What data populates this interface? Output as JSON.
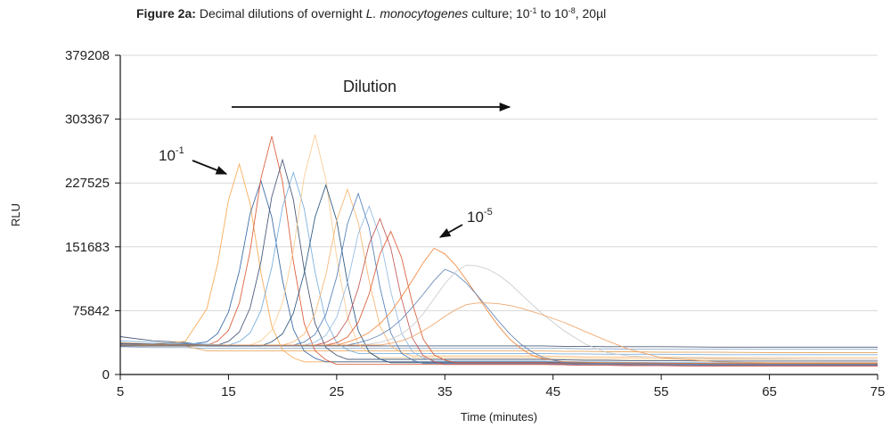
{
  "chart_data": {
    "type": "line",
    "title": [
      "Figure 2a:",
      "Decimal dilutions of overnight",
      "L. monocytogenes",
      "culture; 10",
      "-1",
      "to 10",
      "-8",
      ", 20µl"
    ],
    "xlabel": "Time (minutes)",
    "ylabel": "RLU",
    "annotations": [
      {
        "text": "Dilution"
      },
      {
        "text": "10",
        "sup": "-1"
      },
      {
        "text": "10",
        "sup": "-5"
      }
    ],
    "xlim": [
      5,
      75
    ],
    "xticks": [
      5,
      15,
      25,
      35,
      45,
      55,
      65,
      75
    ],
    "ylim": [
      0,
      379208
    ],
    "yticks": [
      0,
      75842,
      151683,
      227525,
      303367,
      379208
    ],
    "grid": true,
    "x": [
      5,
      8,
      11,
      13,
      14,
      15,
      16,
      17,
      18,
      19,
      20,
      21,
      22,
      23,
      24,
      25,
      26,
      27,
      28,
      29,
      30,
      31,
      32,
      33,
      34,
      35,
      36,
      37,
      38,
      39,
      40,
      41,
      42,
      43,
      44,
      46,
      48,
      50,
      52,
      55,
      60,
      65,
      70,
      75
    ],
    "series": [
      {
        "color": "#7f9fc0",
        "values": [
          33000,
          32000,
          32000,
          31000,
          31000,
          31000,
          31000,
          31000,
          31000,
          31000,
          31000,
          31000,
          31000,
          31000,
          31000,
          31000,
          31000,
          31000,
          31000,
          31000,
          31000,
          31000,
          31000,
          31000,
          31000,
          31000,
          31000,
          31000,
          31000,
          31000,
          31000,
          31000,
          31000,
          31000,
          31000,
          31000,
          30500,
          30500,
          30000,
          30000,
          30000,
          30000,
          30000,
          30000
        ]
      },
      {
        "color": "#e6a35a",
        "values": [
          38000,
          36000,
          34000,
          28000,
          28000,
          28000,
          28000,
          28000,
          28000,
          28000,
          28000,
          28000,
          28000,
          28000,
          28000,
          28000,
          28000,
          28000,
          28000,
          28000,
          28000,
          28000,
          28000,
          28000,
          28000,
          28000,
          28000,
          28000,
          28000,
          28000,
          28000,
          28000,
          28000,
          28000,
          28000,
          27500,
          27500,
          27000,
          27000,
          26500,
          26500,
          26000,
          26000,
          26000
        ]
      },
      {
        "color": "#3a4a6b",
        "values": [
          45000,
          40000,
          38000,
          34000,
          34000,
          34000,
          34000,
          34000,
          34000,
          34000,
          34000,
          34000,
          34000,
          34000,
          34000,
          34000,
          34000,
          34000,
          34000,
          34000,
          34000,
          34000,
          34000,
          34000,
          34000,
          34000,
          34000,
          34000,
          34000,
          34000,
          34000,
          34000,
          34000,
          34000,
          34000,
          33500,
          33500,
          33000,
          33000,
          33000,
          32500,
          32500,
          32500,
          32500
        ]
      },
      {
        "color": "#f5a54a",
        "values": [
          35000,
          36000,
          39300,
          78000,
          131750,
          207000,
          250000,
          203000,
          120750,
          57300,
          29100,
          19700,
          15000,
          15000,
          15000,
          15000,
          15000,
          15000,
          15000,
          15000,
          15000,
          15000,
          15000,
          15000,
          15000,
          15000,
          15000,
          15000,
          15000,
          15000,
          15000,
          15000,
          15000,
          15000,
          15000,
          14500,
          14000,
          14000,
          13500,
          13500,
          13000,
          13000,
          13000,
          13000
        ]
      },
      {
        "color": "#2c5f9e",
        "values": [
          36000,
          35000,
          35000,
          38900,
          48650,
          74000,
          122750,
          191000,
          230000,
          187000,
          111750,
          53700,
          27900,
          19300,
          15000,
          15000,
          15000,
          15000,
          15000,
          15000,
          15000,
          15000,
          15000,
          15000,
          15000,
          15000,
          15000,
          15000,
          15000,
          15000,
          15000,
          15000,
          15000,
          15000,
          15000,
          14500,
          14000,
          14000,
          14000,
          13500,
          13500,
          13500,
          13500,
          13500
        ]
      },
      {
        "color": "#d9532b",
        "values": [
          34000,
          34000,
          34000,
          34500,
          39960,
          52360,
          84600,
          146600,
          233400,
          283000,
          228800,
          133950,
          60780,
          28260,
          17420,
          12000,
          12000,
          12000,
          12000,
          12000,
          12000,
          12000,
          12000,
          12000,
          12000,
          12000,
          12000,
          12000,
          12000,
          12000,
          12000,
          12000,
          12000,
          12000,
          12000,
          11500,
          11000,
          11000,
          10500,
          10500,
          10000,
          10000,
          10000,
          10000
        ]
      },
      {
        "color": "#3a4a6b",
        "values": [
          37000,
          36000,
          36000,
          35500,
          35000,
          39400,
          50400,
          79000,
          134000,
          211000,
          255000,
          207600,
          124650,
          60660,
          32220,
          22740,
          18000,
          18000,
          18000,
          18000,
          18000,
          18000,
          18000,
          18000,
          18000,
          18000,
          18000,
          18000,
          18000,
          18000,
          18000,
          18000,
          18000,
          18000,
          18000,
          17500,
          17000,
          17000,
          16500,
          16500,
          16000,
          16000,
          16000,
          16000
        ]
      },
      {
        "color": "#6fa8dc",
        "values": [
          40000,
          38000,
          37000,
          36000,
          35500,
          35000,
          39100,
          49350,
          76000,
          127250,
          199000,
          240000,
          197000,
          121750,
          63700,
          37900,
          29300,
          25000,
          25000,
          25000,
          25000,
          25000,
          25000,
          25000,
          25000,
          25000,
          25000,
          25000,
          25000,
          25000,
          25000,
          25000,
          25000,
          25000,
          25000,
          24500,
          24500,
          24000,
          24000,
          24000,
          23500,
          23500,
          23500,
          23500
        ]
      },
      {
        "color": "#f9c98a",
        "values": [
          35000,
          35000,
          35000,
          35000,
          35000,
          35000,
          35000,
          35000,
          40000,
          52500,
          85000,
          147500,
          235000,
          285000,
          232000,
          139250,
          67700,
          35900,
          25300,
          20000,
          20000,
          20000,
          20000,
          20000,
          20000,
          20000,
          20000,
          20000,
          20000,
          20000,
          20000,
          20000,
          20000,
          20000,
          20000,
          19500,
          19000,
          19000,
          18500,
          18500,
          18000,
          18000,
          18000,
          18000
        ]
      },
      {
        "color": "#1f4e79",
        "values": [
          34000,
          34000,
          34000,
          34000,
          34000,
          34000,
          34000,
          34000,
          34000,
          38800,
          48300,
          73000,
          120500,
          187000,
          225000,
          182800,
          108950,
          51980,
          26660,
          18220,
          14000,
          14000,
          14000,
          14000,
          14000,
          14000,
          14000,
          14000,
          14000,
          14000,
          14000,
          14000,
          14000,
          14000,
          14000,
          13500,
          13000,
          13000,
          12500,
          12500,
          12000,
          12000,
          12000,
          12000
        ]
      },
      {
        "color": "#f7b36b",
        "values": [
          35000,
          35000,
          35000,
          35000,
          35000,
          35000,
          35000,
          35000,
          35000,
          35000,
          35000,
          38700,
          47950,
          72000,
          118250,
          183000,
          220000,
          180400,
          111100,
          57640,
          33880,
          25960,
          22000,
          22000,
          22000,
          22000,
          22000,
          22000,
          22000,
          22000,
          22000,
          22000,
          22000,
          22000,
          22000,
          21500,
          21000,
          21000,
          20500,
          20500,
          20000,
          20000,
          20000,
          20000
        ]
      },
      {
        "color": "#4a78b5",
        "values": [
          35000,
          35000,
          35000,
          35000,
          35000,
          35000,
          35000,
          35000,
          35000,
          35000,
          35000,
          35000,
          38600,
          47600,
          71000,
          116000,
          179000,
          215000,
          174600,
          103900,
          49360,
          25120,
          17040,
          13000,
          13000,
          13000,
          13000,
          13000,
          13000,
          13000,
          13000,
          13000,
          13000,
          13000,
          13000,
          12500,
          12000,
          12000,
          11500,
          11500,
          11000,
          11000,
          11000,
          11000
        ]
      },
      {
        "color": "#8fb8e0",
        "values": [
          35000,
          35000,
          35000,
          35000,
          35000,
          35000,
          35000,
          35000,
          35000,
          35000,
          35000,
          35000,
          35000,
          38300,
          46550,
          68000,
          109250,
          167000,
          200000,
          163200,
          98800,
          49120,
          27040,
          19680,
          16000,
          16000,
          16000,
          16000,
          16000,
          16000,
          16000,
          16000,
          16000,
          16000,
          16000,
          15500,
          15000,
          15000,
          14500,
          14500,
          14000,
          14000,
          14000,
          14000
        ]
      },
      {
        "color": "#d9532b",
        "values": [
          35000,
          35000,
          35000,
          35000,
          35000,
          35000,
          35000,
          35000,
          35000,
          35000,
          35000,
          35000,
          35000,
          35000,
          35000,
          37700,
          44450,
          62000,
          95750,
          143000,
          170000,
          138800,
          84200,
          42080,
          23360,
          17120,
          14000,
          14000,
          14000,
          14000,
          14000,
          14000,
          14000,
          14000,
          14000,
          13500,
          13000,
          13000,
          12500,
          12500,
          12000,
          12000,
          12000,
          12000
        ]
      },
      {
        "color": "#c0504d",
        "values": [
          35000,
          35000,
          35000,
          35000,
          35000,
          35000,
          35000,
          35000,
          35000,
          35000,
          35000,
          35000,
          35000,
          35000,
          38000,
          45500,
          65000,
          102500,
          155000,
          185000,
          150400,
          89850,
          43140,
          22380,
          15460,
          12000,
          12000,
          12000,
          12000,
          12000,
          12000,
          12000,
          12000,
          12000,
          12000,
          11500,
          11000,
          11000,
          10500,
          10500,
          10000,
          10000,
          10000,
          10000
        ]
      },
      {
        "color": "#f08030",
        "values": [
          35000,
          35000,
          35000,
          35000,
          35000,
          35000,
          35000,
          35000,
          35000,
          35000,
          35000,
          35000,
          35000,
          35000,
          35000,
          35000,
          38450,
          43050,
          49950,
          60300,
          74100,
          92500,
          112050,
          132750,
          150000,
          143250,
          129750,
          112200,
          93300,
          74400,
          56850,
          42000,
          31200,
          23100,
          19050,
          15000,
          14500,
          14000,
          14000,
          13500,
          13000,
          13000,
          13000,
          13000
        ]
      },
      {
        "color": "#5b7fb0",
        "values": [
          35000,
          35000,
          35000,
          35000,
          35000,
          35000,
          35000,
          35000,
          35000,
          35000,
          35000,
          35000,
          35000,
          35000,
          35000,
          35000,
          35000,
          37700,
          41300,
          46700,
          54800,
          65600,
          80000,
          95300,
          111500,
          125000,
          119450,
          108350,
          93920,
          78380,
          62840,
          48410,
          36200,
          27320,
          20660,
          14000,
          13500,
          13000,
          13000,
          12500,
          12000,
          12000,
          12000,
          12000
        ]
      },
      {
        "color": "#c8c8c8",
        "values": [
          35000,
          35000,
          35000,
          35000,
          35000,
          35000,
          35000,
          35000,
          35000,
          35000,
          35000,
          35000,
          35000,
          35000,
          35000,
          35000,
          35000,
          35000,
          36000,
          38000,
          42000,
          48000,
          58000,
          72000,
          90000,
          108000,
          122000,
          130000,
          129000,
          125000,
          118000,
          108000,
          96000,
          84000,
          72000,
          52000,
          36000,
          26000,
          22000,
          20000,
          19000,
          18500,
          18000,
          18000
        ]
      },
      {
        "color": "#f0a060",
        "values": [
          35000,
          35000,
          35000,
          35000,
          35000,
          35000,
          35000,
          35000,
          35000,
          35000,
          35000,
          35000,
          35000,
          35000,
          35000,
          35000,
          35000,
          35000,
          35000,
          35000,
          37000,
          40000,
          45000,
          52000,
          60000,
          69000,
          77000,
          83000,
          85000,
          85000,
          84000,
          82000,
          79000,
          75000,
          71000,
          62000,
          51000,
          40000,
          30000,
          20000,
          15000,
          14000,
          14000,
          14000
        ]
      }
    ]
  }
}
